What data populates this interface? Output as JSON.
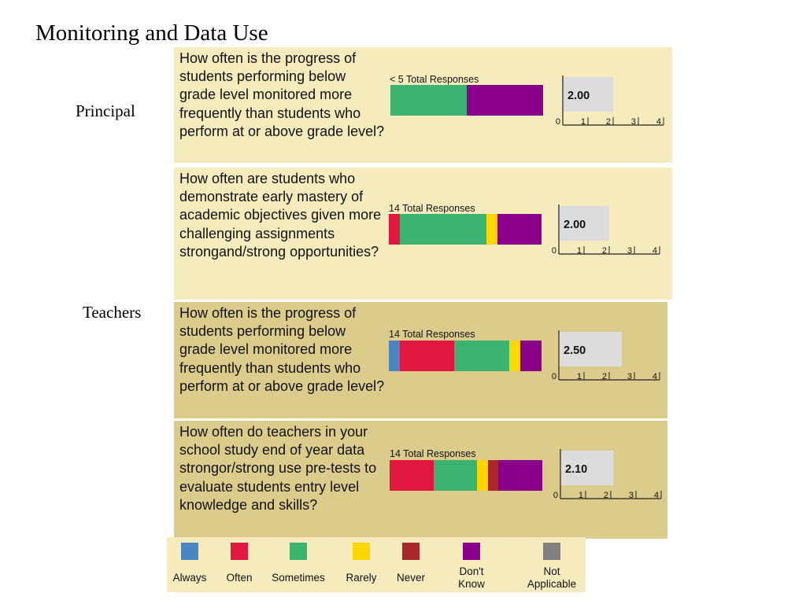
{
  "title": "Monitoring and Data Use",
  "groups": {
    "principal": "Principal",
    "teachers": "Teachers"
  },
  "colors": {
    "Always": "#4a86c3",
    "Often": "#e2173f",
    "Sometimes": "#3cb371",
    "Rarely": "#ffd700",
    "Never": "#a8292b",
    "Dont_Know": "#8b008b",
    "Not_Applicable": "#808080"
  },
  "legend": {
    "items": [
      {
        "key": "Always",
        "label": "Always"
      },
      {
        "key": "Often",
        "label": "Often"
      },
      {
        "key": "Sometimes",
        "label": "Sometimes"
      },
      {
        "key": "Rarely",
        "label": "Rarely"
      },
      {
        "key": "Never",
        "label": "Never"
      },
      {
        "key": "Dont_Know",
        "label": "Don't\nKnow"
      },
      {
        "key": "Not_Applicable",
        "label": "Not\nApplicable"
      }
    ]
  },
  "chart_data": [
    {
      "type": "bar",
      "stacked": true,
      "group": "Principal",
      "question": "How often is the progress of students performing below grade level monitored more frequently than students who perform at or above grade level?",
      "responses_label": "< 5 Total Responses",
      "distribution": [
        {
          "category": "Sometimes",
          "share": 0.5
        },
        {
          "category": "Dont_Know",
          "share": 0.5
        }
      ],
      "mean": 2.0,
      "mean_label": "2.00",
      "mean_axis": {
        "min": 0,
        "max": 4,
        "ticks": [
          "0",
          "1",
          "2",
          "3",
          "4"
        ]
      }
    },
    {
      "type": "bar",
      "stacked": true,
      "group": "Teachers",
      "question": "How often are students who demonstrate early mastery of academic objectives given more challenging assignments strongand/strong opportunities?",
      "responses_label": "14 Total Responses",
      "distribution": [
        {
          "category": "Often",
          "share": 0.07
        },
        {
          "category": "Sometimes",
          "share": 0.57
        },
        {
          "category": "Rarely",
          "share": 0.07
        },
        {
          "category": "Dont_Know",
          "share": 0.29
        }
      ],
      "mean": 2.0,
      "mean_label": "2.00",
      "mean_axis": {
        "min": 0,
        "max": 4,
        "ticks": [
          "0",
          "1",
          "2",
          "3",
          "4"
        ]
      }
    },
    {
      "type": "bar",
      "stacked": true,
      "group": "Teachers",
      "question": "How often is the progress of students performing below grade level monitored more frequently than students who perform at or above grade level?",
      "responses_label": "14 Total Responses",
      "distribution": [
        {
          "category": "Always",
          "share": 0.07
        },
        {
          "category": "Often",
          "share": 0.36
        },
        {
          "category": "Sometimes",
          "share": 0.36
        },
        {
          "category": "Rarely",
          "share": 0.07
        },
        {
          "category": "Dont_Know",
          "share": 0.14
        }
      ],
      "mean": 2.5,
      "mean_label": "2.50",
      "mean_axis": {
        "min": 0,
        "max": 4,
        "ticks": [
          "0",
          "1",
          "2",
          "3",
          "4"
        ]
      }
    },
    {
      "type": "bar",
      "stacked": true,
      "group": "Teachers",
      "question": "How often do teachers in your school study end of year data strongor/strong use pre-tests to evaluate students entry level knowledge and skills?",
      "responses_label": "14 Total Responses",
      "distribution": [
        {
          "category": "Often",
          "share": 0.29
        },
        {
          "category": "Sometimes",
          "share": 0.29
        },
        {
          "category": "Rarely",
          "share": 0.07
        },
        {
          "category": "Never",
          "share": 0.07
        },
        {
          "category": "Dont_Know",
          "share": 0.29
        }
      ],
      "mean": 2.1,
      "mean_label": "2.10",
      "mean_axis": {
        "min": 0,
        "max": 4,
        "ticks": [
          "0",
          "1",
          "2",
          "3",
          "4"
        ]
      }
    }
  ]
}
